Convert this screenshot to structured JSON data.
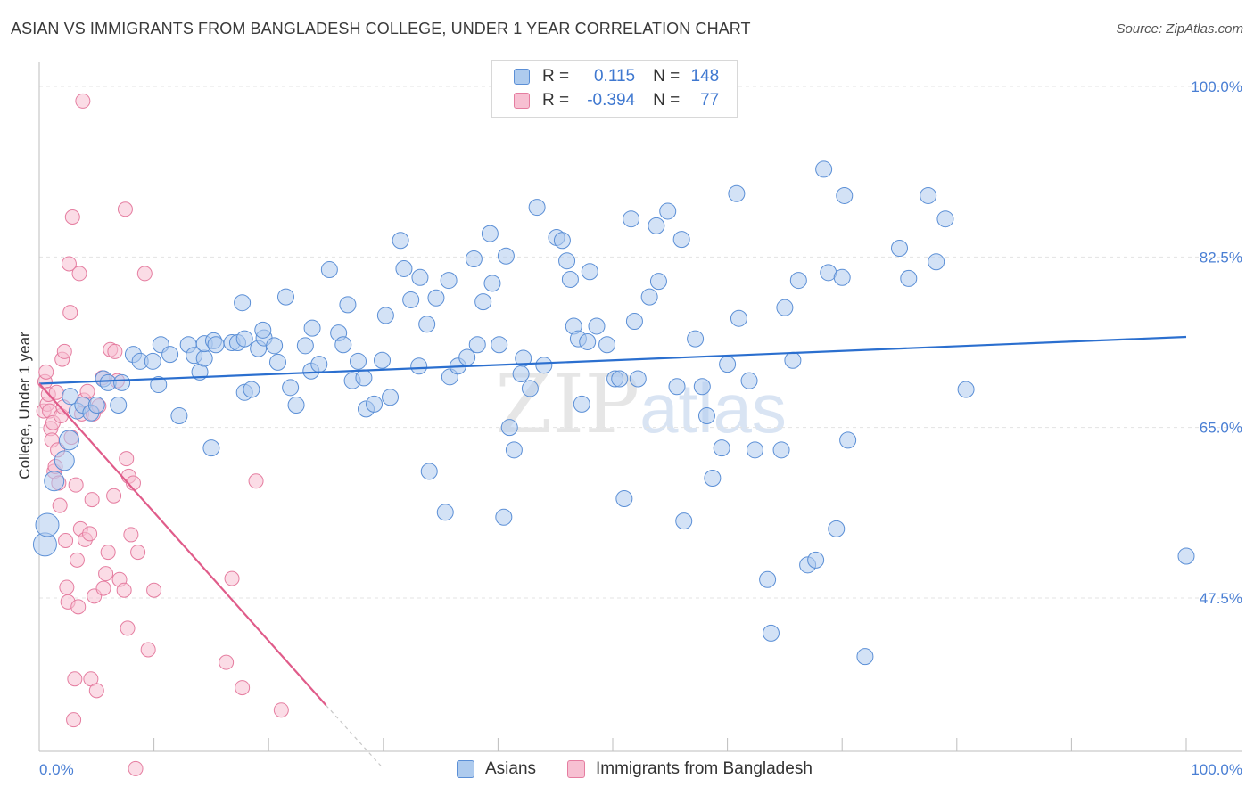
{
  "title": "ASIAN VS IMMIGRANTS FROM BANGLADESH COLLEGE, UNDER 1 YEAR CORRELATION CHART",
  "source": "Source: ZipAtlas.com",
  "watermark": {
    "zip": "ZIP",
    "atlas": "atlas"
  },
  "legend_top": {
    "rows": [
      {
        "r_label": "R =",
        "r_value": "0.115",
        "n_label": "N =",
        "n_value": "148"
      },
      {
        "r_label": "R =",
        "r_value": "-0.394",
        "n_label": "N =",
        "n_value": "77"
      }
    ]
  },
  "colors": {
    "asians_fill": "#aecbee",
    "asians_stroke": "#5b8fd6",
    "asians_line": "#2b6fcf",
    "bangladesh_fill": "#f7c0d2",
    "bangladesh_stroke": "#e57da0",
    "bangladesh_line": "#e05c8a",
    "tick_label": "#4a7fd4",
    "grid": "#e3e3e3"
  },
  "chart_data": {
    "type": "scatter",
    "title": "ASIAN VS IMMIGRANTS FROM BANGLADESH COLLEGE, UNDER 1 YEAR CORRELATION CHART",
    "xlabel": "",
    "ylabel": "College, Under 1 year",
    "xlim": [
      0,
      100
    ],
    "ylim": [
      29.5,
      102
    ],
    "y_ticks": [
      47.5,
      65.0,
      82.5,
      100.0
    ],
    "y_tick_labels": [
      "47.5%",
      "65.0%",
      "82.5%",
      "100.0%"
    ],
    "x_tick_labels": [
      "0.0%",
      "100.0%"
    ],
    "grid": true,
    "legend_position": "top-center and bottom",
    "series": [
      {
        "name": "Asians",
        "r": 0.115,
        "n": 148,
        "trend": {
          "x": [
            0,
            100
          ],
          "y": [
            69.5,
            74.3
          ]
        },
        "points": [
          [
            0.5,
            53
          ],
          [
            0.7,
            55
          ],
          [
            1.3,
            59.5
          ],
          [
            2.2,
            61.6
          ],
          [
            2.6,
            63.7
          ],
          [
            2.7,
            68.2
          ],
          [
            3.3,
            66.7
          ],
          [
            3.8,
            67.3
          ],
          [
            4.5,
            66.5
          ],
          [
            5.0,
            67.3
          ],
          [
            5.6,
            70.0
          ],
          [
            6.0,
            69.6
          ],
          [
            6.9,
            67.3
          ],
          [
            7.2,
            69.6
          ],
          [
            8.2,
            72.5
          ],
          [
            8.8,
            71.8
          ],
          [
            9.9,
            71.8
          ],
          [
            10.4,
            69.4
          ],
          [
            10.6,
            73.5
          ],
          [
            11.4,
            72.5
          ],
          [
            12.2,
            66.2
          ],
          [
            13.0,
            73.5
          ],
          [
            13.5,
            72.4
          ],
          [
            14.0,
            70.7
          ],
          [
            14.4,
            72.1
          ],
          [
            14.4,
            73.6
          ],
          [
            15.0,
            62.9
          ],
          [
            15.2,
            73.9
          ],
          [
            15.4,
            73.5
          ],
          [
            16.8,
            73.7
          ],
          [
            17.3,
            73.7
          ],
          [
            17.7,
            77.8
          ],
          [
            17.9,
            74.1
          ],
          [
            17.9,
            68.6
          ],
          [
            18.5,
            68.9
          ],
          [
            19.1,
            73.1
          ],
          [
            19.6,
            74.2
          ],
          [
            19.5,
            75.0
          ],
          [
            20.5,
            73.4
          ],
          [
            20.8,
            71.7
          ],
          [
            21.5,
            78.4
          ],
          [
            21.9,
            69.1
          ],
          [
            22.4,
            67.3
          ],
          [
            23.2,
            73.4
          ],
          [
            23.7,
            70.8
          ],
          [
            23.8,
            75.2
          ],
          [
            24.4,
            71.5
          ],
          [
            25.3,
            81.2
          ],
          [
            26.1,
            74.7
          ],
          [
            26.5,
            73.5
          ],
          [
            26.9,
            77.6
          ],
          [
            27.3,
            69.8
          ],
          [
            27.8,
            71.8
          ],
          [
            28.3,
            70.1
          ],
          [
            28.5,
            66.9
          ],
          [
            29.2,
            67.4
          ],
          [
            29.9,
            71.9
          ],
          [
            30.2,
            76.5
          ],
          [
            30.6,
            68.1
          ],
          [
            31.5,
            84.2
          ],
          [
            31.8,
            81.3
          ],
          [
            32.4,
            78.1
          ],
          [
            33.1,
            71.3
          ],
          [
            33.2,
            80.4
          ],
          [
            33.8,
            75.6
          ],
          [
            34.0,
            60.5
          ],
          [
            34.6,
            78.3
          ],
          [
            35.4,
            56.3
          ],
          [
            35.7,
            80.1
          ],
          [
            35.8,
            70.2
          ],
          [
            36.5,
            71.3
          ],
          [
            37.3,
            72.2
          ],
          [
            37.9,
            82.3
          ],
          [
            38.2,
            73.5
          ],
          [
            38.7,
            77.9
          ],
          [
            39.3,
            84.9
          ],
          [
            39.5,
            79.8
          ],
          [
            40.1,
            73.5
          ],
          [
            40.5,
            55.8
          ],
          [
            40.7,
            82.6
          ],
          [
            41.0,
            65.0
          ],
          [
            41.4,
            62.7
          ],
          [
            42.0,
            70.5
          ],
          [
            42.2,
            72.1
          ],
          [
            42.8,
            69.0
          ],
          [
            43.4,
            87.6
          ],
          [
            44.0,
            71.4
          ],
          [
            45.1,
            84.5
          ],
          [
            45.6,
            84.2
          ],
          [
            46.0,
            82.1
          ],
          [
            46.3,
            80.2
          ],
          [
            46.6,
            75.4
          ],
          [
            47.0,
            74.1
          ],
          [
            47.3,
            67.4
          ],
          [
            47.8,
            73.8
          ],
          [
            48.0,
            81.0
          ],
          [
            48.6,
            75.4
          ],
          [
            49.5,
            73.5
          ],
          [
            50.2,
            70.0
          ],
          [
            50.6,
            70.0
          ],
          [
            51.0,
            57.7
          ],
          [
            51.6,
            86.4
          ],
          [
            51.9,
            75.9
          ],
          [
            52.2,
            70.0
          ],
          [
            53.2,
            78.4
          ],
          [
            54.0,
            80.0
          ],
          [
            53.8,
            85.7
          ],
          [
            54.8,
            87.2
          ],
          [
            55.6,
            69.2
          ],
          [
            56.0,
            84.3
          ],
          [
            56.2,
            55.4
          ],
          [
            57.2,
            74.1
          ],
          [
            57.8,
            69.2
          ],
          [
            58.2,
            66.2
          ],
          [
            58.7,
            59.8
          ],
          [
            59.5,
            62.9
          ],
          [
            60.0,
            71.5
          ],
          [
            60.8,
            89.0
          ],
          [
            61.0,
            76.2
          ],
          [
            61.9,
            69.8
          ],
          [
            62.4,
            62.7
          ],
          [
            63.5,
            49.4
          ],
          [
            63.8,
            43.9
          ],
          [
            64.7,
            62.7
          ],
          [
            65.0,
            77.3
          ],
          [
            65.7,
            71.9
          ],
          [
            66.2,
            80.1
          ],
          [
            67.0,
            50.9
          ],
          [
            67.7,
            51.4
          ],
          [
            68.4,
            91.5
          ],
          [
            68.8,
            80.9
          ],
          [
            69.5,
            54.6
          ],
          [
            70.0,
            80.4
          ],
          [
            70.2,
            88.8
          ],
          [
            70.5,
            63.7
          ],
          [
            72.0,
            41.5
          ],
          [
            75.0,
            83.4
          ],
          [
            75.8,
            80.3
          ],
          [
            77.5,
            88.8
          ],
          [
            78.2,
            82.0
          ],
          [
            79.0,
            86.4
          ],
          [
            80.8,
            68.9
          ],
          [
            100.0,
            51.8
          ]
        ]
      },
      {
        "name": "Immigrants from Bangladesh",
        "r": -0.394,
        "n": 77,
        "trend": {
          "x": [
            0,
            25,
            30
          ],
          "y": [
            69.5,
            36.5,
            30.0
          ]
        },
        "points": [
          [
            0.4,
            66.7
          ],
          [
            0.5,
            69.7
          ],
          [
            0.6,
            70.7
          ],
          [
            0.7,
            67.4
          ],
          [
            0.8,
            68.4
          ],
          [
            0.9,
            66.7
          ],
          [
            1.0,
            64.9
          ],
          [
            1.1,
            63.7
          ],
          [
            1.2,
            65.5
          ],
          [
            1.3,
            60.5
          ],
          [
            1.4,
            61.0
          ],
          [
            1.5,
            68.6
          ],
          [
            1.6,
            62.7
          ],
          [
            1.7,
            59.3
          ],
          [
            1.8,
            57.0
          ],
          [
            1.9,
            66.2
          ],
          [
            2.0,
            72.0
          ],
          [
            2.1,
            67.1
          ],
          [
            2.2,
            72.8
          ],
          [
            2.3,
            53.4
          ],
          [
            2.4,
            48.6
          ],
          [
            2.5,
            47.1
          ],
          [
            2.6,
            81.8
          ],
          [
            2.7,
            76.8
          ],
          [
            2.8,
            64.0
          ],
          [
            2.9,
            86.6
          ],
          [
            3.0,
            35.0
          ],
          [
            3.1,
            39.2
          ],
          [
            3.2,
            59.1
          ],
          [
            3.3,
            51.4
          ],
          [
            3.4,
            46.6
          ],
          [
            3.5,
            80.8
          ],
          [
            3.6,
            54.6
          ],
          [
            3.7,
            66.4
          ],
          [
            3.8,
            98.5
          ],
          [
            3.9,
            67.8
          ],
          [
            4.0,
            53.5
          ],
          [
            4.2,
            68.7
          ],
          [
            4.4,
            54.1
          ],
          [
            4.5,
            39.2
          ],
          [
            4.6,
            57.6
          ],
          [
            4.7,
            66.4
          ],
          [
            4.8,
            47.7
          ],
          [
            5.0,
            38.0
          ],
          [
            5.2,
            67.2
          ],
          [
            5.5,
            70.1
          ],
          [
            5.6,
            48.5
          ],
          [
            5.8,
            50.0
          ],
          [
            6.0,
            52.2
          ],
          [
            6.2,
            73.0
          ],
          [
            6.5,
            58.0
          ],
          [
            6.6,
            72.8
          ],
          [
            6.8,
            69.8
          ],
          [
            7.0,
            49.4
          ],
          [
            7.4,
            48.3
          ],
          [
            7.5,
            87.4
          ],
          [
            7.6,
            61.8
          ],
          [
            7.7,
            44.4
          ],
          [
            7.8,
            60.0
          ],
          [
            8.0,
            54.0
          ],
          [
            8.2,
            59.3
          ],
          [
            8.4,
            30.0
          ],
          [
            8.6,
            52.2
          ],
          [
            9.2,
            80.8
          ],
          [
            9.5,
            42.2
          ],
          [
            10.0,
            48.3
          ],
          [
            16.3,
            40.9
          ],
          [
            16.8,
            49.5
          ],
          [
            17.7,
            38.3
          ],
          [
            18.9,
            59.5
          ],
          [
            21.1,
            36.0
          ]
        ]
      }
    ]
  }
}
